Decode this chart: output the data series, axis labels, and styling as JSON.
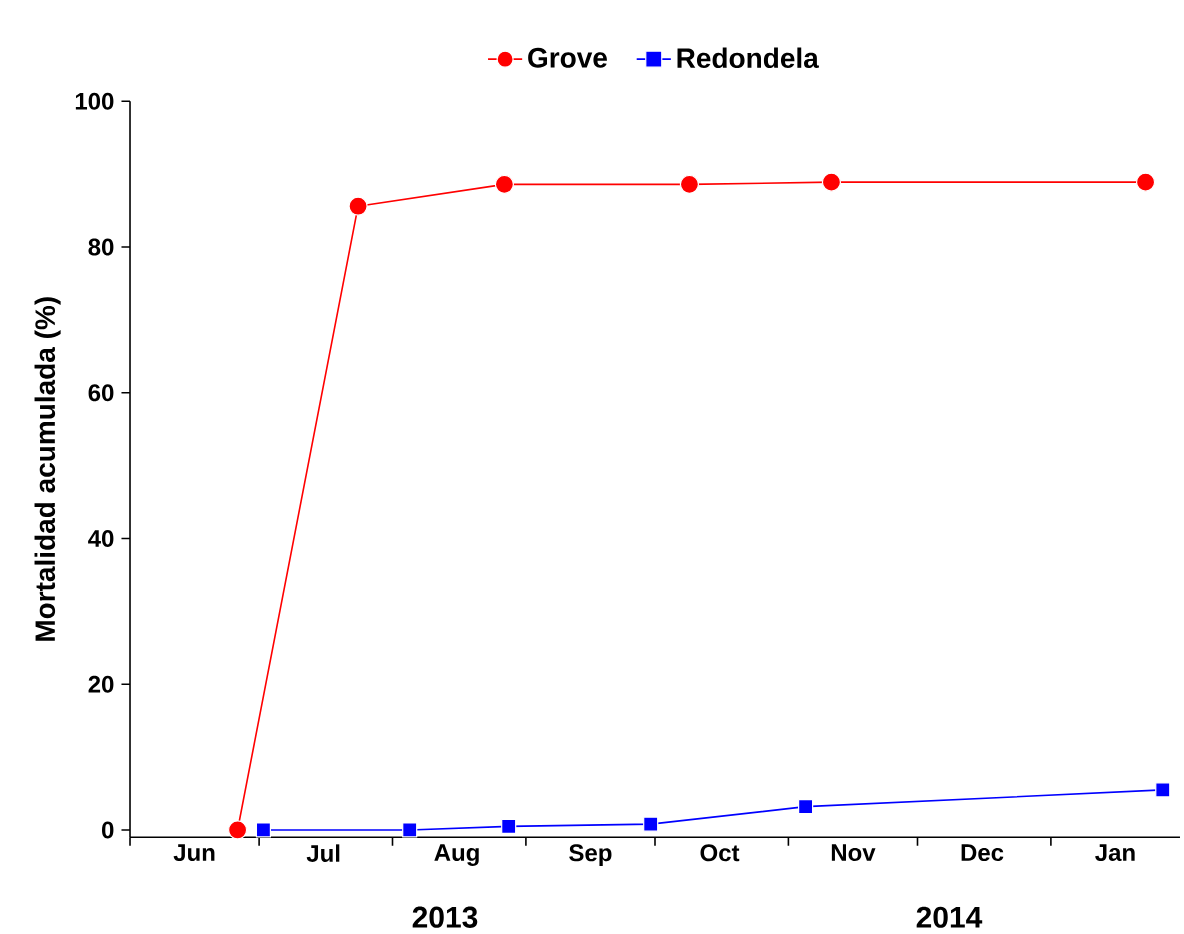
{
  "chart_data": {
    "type": "line",
    "ylabel": "Mortalidad acumulada (%)",
    "annotations": [
      "2013",
      "2014"
    ],
    "xlim": [
      "2013-06-01",
      "2014-01-31"
    ],
    "xticks": [
      {
        "value": "2013-06-01",
        "label": null
      },
      {
        "value": "2013-06-16",
        "label": "Jun"
      },
      {
        "value": "2013-07-01",
        "label": null
      },
      {
        "value": "2013-07-16",
        "label": "Jul"
      },
      {
        "value": "2013-08-01",
        "label": null
      },
      {
        "value": "2013-08-16",
        "label": "Aug"
      },
      {
        "value": "2013-09-01",
        "label": null
      },
      {
        "value": "2013-09-16",
        "label": "Sep"
      },
      {
        "value": "2013-10-01",
        "label": null
      },
      {
        "value": "2013-10-16",
        "label": "Oct"
      },
      {
        "value": "2013-11-01",
        "label": null
      },
      {
        "value": "2013-11-16",
        "label": "Nov"
      },
      {
        "value": "2013-12-01",
        "label": null
      },
      {
        "value": "2013-12-16",
        "label": "Dec"
      },
      {
        "value": "2014-01-01",
        "label": null
      },
      {
        "value": "2014-01-16",
        "label": "Jan"
      }
    ],
    "ylim": [
      -1,
      100
    ],
    "yticks": [
      0,
      20,
      40,
      60,
      80,
      100
    ],
    "legend": "top",
    "grid": false,
    "line_style": "solid",
    "series": [
      {
        "name": "Grove",
        "color": "#ff0000",
        "marker": "circle",
        "x": [
          "2013-06-26",
          "2013-07-24",
          "2013-08-27",
          "2013-10-09",
          "2013-11-11",
          "2014-01-23"
        ],
        "values": [
          0,
          85.6,
          88.6,
          88.6,
          88.9,
          88.9
        ]
      },
      {
        "name": "Redondela",
        "color": "#0000ff",
        "marker": "square",
        "x": [
          "2013-07-02",
          "2013-08-05",
          "2013-08-28",
          "2013-09-30",
          "2013-11-05",
          "2014-01-27"
        ],
        "values": [
          0,
          0,
          0.5,
          0.8,
          3.2,
          5.5
        ]
      }
    ]
  }
}
